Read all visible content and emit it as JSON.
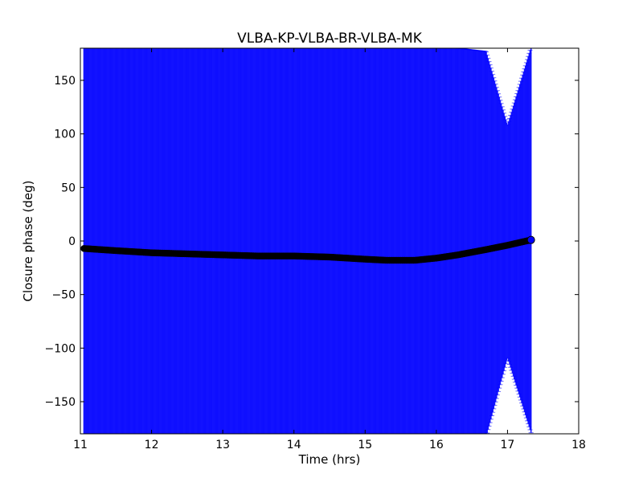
{
  "chart_data": {
    "type": "scatter",
    "title": "VLBA-KP-VLBA-BR-VLBA-MK",
    "xlabel": "Time (hrs)",
    "ylabel": "Closure phase (deg)",
    "xlim": [
      11,
      18
    ],
    "ylim": [
      -180,
      180
    ],
    "xticks": [
      11,
      12,
      13,
      14,
      15,
      16,
      17,
      18
    ],
    "yticks": [
      -150,
      -100,
      -50,
      0,
      50,
      100,
      150
    ],
    "xtick_labels": [
      "11",
      "12",
      "13",
      "14",
      "15",
      "16",
      "17",
      "18"
    ],
    "ytick_labels": [
      "−150",
      "−100",
      "−50",
      "0",
      "50",
      "100",
      "150"
    ],
    "grid": false,
    "colors": {
      "errorbars": "#0000ff",
      "points": "#000000",
      "axes": "#000000"
    },
    "series": [
      {
        "x": [
          11.05,
          11.5,
          12.0,
          12.5,
          13.0,
          13.5,
          14.0,
          14.5,
          15.0,
          15.3,
          15.7,
          16.0,
          16.3,
          16.7,
          17.0,
          17.33
        ],
        "y": [
          -7,
          -9,
          -11,
          -12,
          -13,
          -14,
          -14,
          -15,
          -17,
          -18,
          -18,
          -16,
          -13,
          -8,
          -4,
          1
        ],
        "error_lower": [
          173,
          171,
          169,
          168,
          167,
          166,
          166,
          165,
          163,
          162,
          162,
          164,
          167,
          175,
          105,
          180
        ],
        "error_upper": [
          187,
          189,
          191,
          192,
          193,
          194,
          194,
          195,
          197,
          198,
          198,
          196,
          193,
          185,
          112,
          180
        ]
      }
    ]
  }
}
